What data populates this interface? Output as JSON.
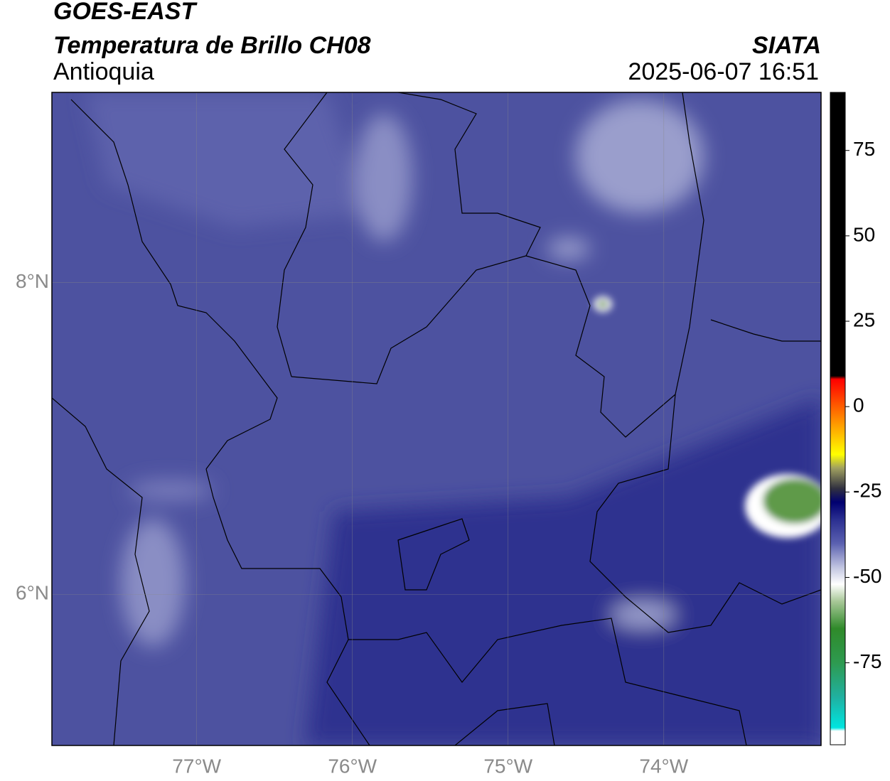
{
  "header": {
    "title": "GOES-EAST",
    "subtitle": "Temperatura de Brillo CH08",
    "region": "Antioquia",
    "source": "SIATA",
    "datetime": "2025-06-07 16:51"
  },
  "map": {
    "xlim": [
      -77.93,
      -72.99
    ],
    "ylim": [
      5.03,
      9.22
    ],
    "xticks": [
      {
        "value": -77,
        "label": "77°W"
      },
      {
        "value": -76,
        "label": "76°W"
      },
      {
        "value": -75,
        "label": "75°W"
      },
      {
        "value": -74,
        "label": "74°W"
      }
    ],
    "yticks": [
      {
        "value": 6,
        "label": "6°N"
      },
      {
        "value": 8,
        "label": "8°N"
      }
    ],
    "grid": true
  },
  "colorbar": {
    "lim": [
      -99,
      92
    ],
    "ticks": [
      -75,
      -50,
      -25,
      0,
      25,
      50,
      75
    ],
    "colormap": [
      {
        "value": -99,
        "color": "#ffffff"
      },
      {
        "value": -95,
        "color": "#ffffff"
      },
      {
        "value": -94,
        "color": "#00e5e0"
      },
      {
        "value": -85,
        "color": "#20b0a0"
      },
      {
        "value": -75,
        "color": "#2e9a50"
      },
      {
        "value": -65,
        "color": "#2f8a2a"
      },
      {
        "value": -57,
        "color": "#a8c898"
      },
      {
        "value": -52,
        "color": "#ffffff"
      },
      {
        "value": -47,
        "color": "#c0c4e0"
      },
      {
        "value": -40,
        "color": "#5a60b0"
      },
      {
        "value": -33,
        "color": "#2a2e90"
      },
      {
        "value": -28,
        "color": "#000070"
      },
      {
        "value": -24,
        "color": "#303040"
      },
      {
        "value": -18,
        "color": "#a0a060"
      },
      {
        "value": -14,
        "color": "#ffff00"
      },
      {
        "value": -5,
        "color": "#ff9900"
      },
      {
        "value": 5,
        "color": "#ff2200"
      },
      {
        "value": 8,
        "color": "#ff0000"
      },
      {
        "value": 9,
        "color": "#000000"
      },
      {
        "value": 92,
        "color": "#000000"
      }
    ]
  }
}
